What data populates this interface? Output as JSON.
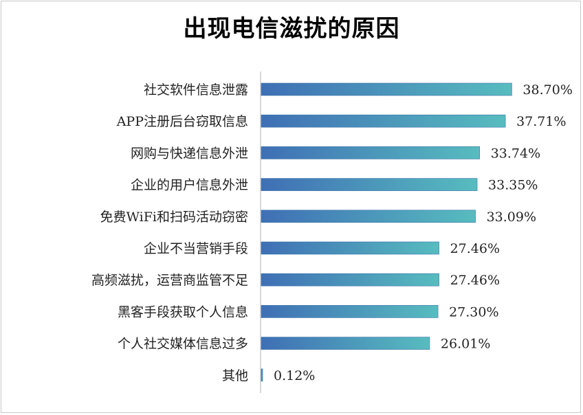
{
  "chart_data": {
    "type": "bar",
    "orientation": "horizontal",
    "title": "出现电信滋扰的原因",
    "categories": [
      "社交软件信息泄露",
      "APP注册后台窃取信息",
      "网购与快递信息外泄",
      "企业的用户信息外泄",
      "免费WiFi和扫码活动窃密",
      "企业不当营销手段",
      "高频滋扰，运营商监管不足",
      "黑客手段获取个人信息",
      "个人社交媒体信息过多",
      "其他"
    ],
    "values": [
      38.7,
      37.71,
      33.74,
      33.35,
      33.09,
      27.46,
      27.46,
      27.3,
      26.01,
      0.12
    ],
    "value_labels": [
      "38.70%",
      "37.71%",
      "33.74%",
      "33.35%",
      "33.09%",
      "27.46%",
      "27.46%",
      "27.30%",
      "26.01%",
      "0.12%"
    ],
    "unit": "%",
    "xlim": [
      0,
      48
    ],
    "grid": false,
    "legend": "none",
    "colors": {
      "gradient_start": "#3f6fb5",
      "gradient_end": "#57bcbf",
      "axis": "#b0b0b0"
    }
  }
}
